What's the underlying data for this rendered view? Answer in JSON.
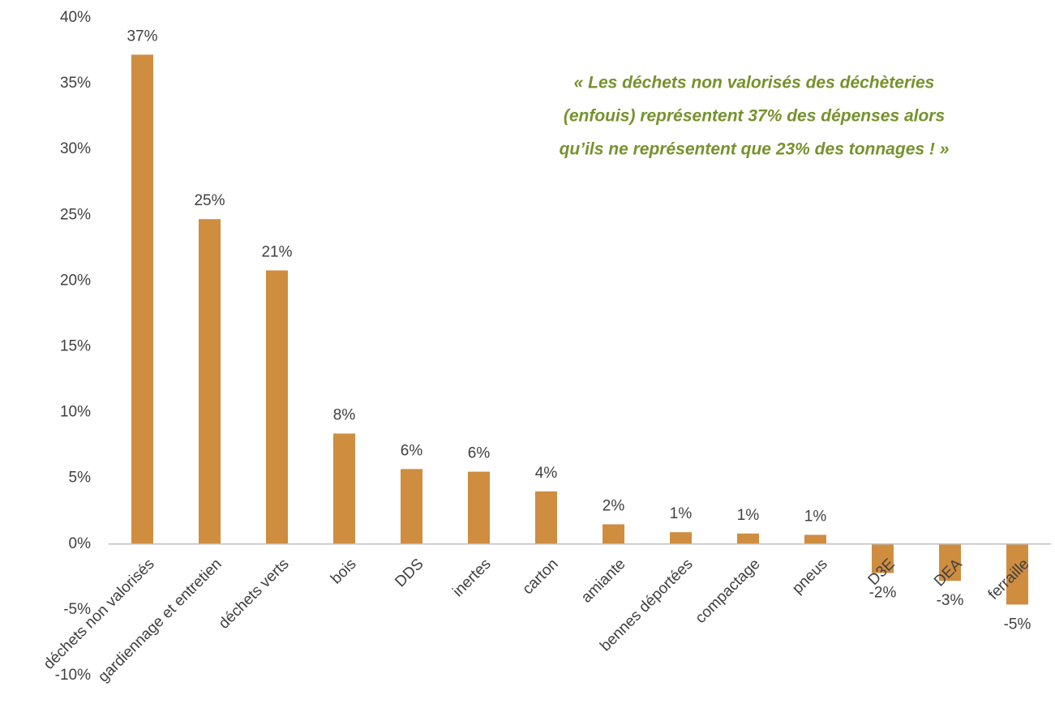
{
  "chart_data": {
    "type": "bar",
    "categories": [
      "déchets non valorisés",
      "gardiennage et entretien",
      "déchets verts",
      "bois",
      "DDS",
      "inertes",
      "carton",
      "amiante",
      "bennes déportées",
      "compactage",
      "pneus",
      "D3E",
      "DEA",
      "ferraille"
    ],
    "values": [
      37.2,
      24.7,
      20.8,
      8.4,
      5.7,
      5.5,
      4.0,
      1.5,
      0.9,
      0.8,
      0.7,
      -2.2,
      -2.8,
      -4.6
    ],
    "value_labels": [
      "37%",
      "25%",
      "21%",
      "8%",
      "6%",
      "6%",
      "4%",
      "2%",
      "1%",
      "1%",
      "1%",
      "-2%",
      "-3%",
      "-5%"
    ],
    "color": "#cf8d40",
    "ylim": [
      -10,
      40
    ],
    "yticks": [
      {
        "value": -10,
        "label": "-10%"
      },
      {
        "value": -5,
        "label": "-5%"
      },
      {
        "value": 0,
        "label": "0%"
      },
      {
        "value": 5,
        "label": "5%"
      },
      {
        "value": 10,
        "label": "10%"
      },
      {
        "value": 15,
        "label": "15%"
      },
      {
        "value": 20,
        "label": "20%"
      },
      {
        "value": 25,
        "label": "25%"
      },
      {
        "value": 30,
        "label": "30%"
      },
      {
        "value": 35,
        "label": "35%"
      },
      {
        "value": 40,
        "label": "40%"
      }
    ],
    "grid": false,
    "annotation": [
      "« Les déchets non valorisés des déchèteries",
      "(enfouis) représentent 37% des dépenses alors",
      "qu’ils ne représentent que 23% des tonnages ! »"
    ],
    "annotation_color": "#76922c"
  }
}
